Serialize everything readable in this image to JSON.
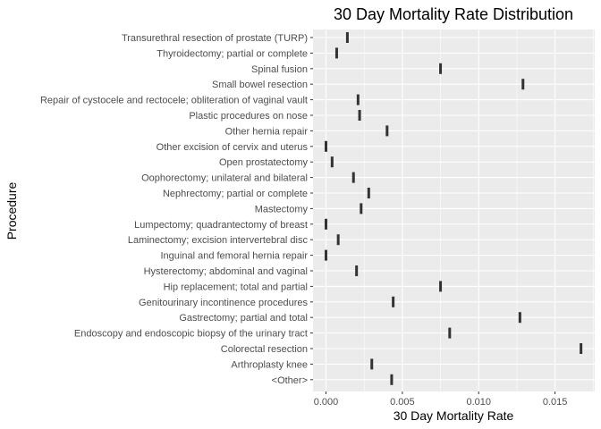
{
  "chart_data": {
    "type": "scatter",
    "title": "30 Day Mortality Rate Distribution",
    "xlabel": "30 Day Mortality Rate",
    "ylabel": "Procedure",
    "xlim": [
      -0.00085,
      0.0176
    ],
    "x_ticks": [
      0.0,
      0.005,
      0.01,
      0.015
    ],
    "x_tick_labels": [
      "0.000",
      "0.005",
      "0.010",
      "0.015"
    ],
    "grid": true,
    "marker": "vertical-dash",
    "colors": {
      "panel": "#ebebeb",
      "grid": "#ffffff",
      "marker": "#333333"
    },
    "categories": [
      "Transurethral resection of prostate (TURP)",
      "Thyroidectomy; partial or complete",
      "Spinal fusion",
      "Small bowel resection",
      "Repair of cystocele and rectocele; obliteration of vaginal vault",
      "Plastic procedures on nose",
      "Other hernia repair",
      "Other excision of cervix and uterus",
      "Open prostatectomy",
      "Oophorectomy; unilateral and bilateral",
      "Nephrectomy; partial or complete",
      "Mastectomy",
      "Lumpectomy; quadrantectomy of breast",
      "Laminectomy; excision intervertebral disc",
      "Inguinal and femoral hernia repair",
      "Hysterectomy; abdominal and vaginal",
      "Hip replacement; total and partial",
      "Genitourinary incontinence procedures",
      "Gastrectomy; partial and total",
      "Endoscopy and endoscopic biopsy of the urinary tract",
      "Colorectal resection",
      "Arthroplasty knee",
      "<Other>"
    ],
    "values": [
      0.0014,
      0.0007,
      0.0075,
      0.0129,
      0.0021,
      0.0022,
      0.004,
      0.0,
      0.0004,
      0.0018,
      0.0028,
      0.0023,
      0.0,
      0.0008,
      0.0,
      0.002,
      0.0075,
      0.0044,
      0.0127,
      0.0081,
      0.0167,
      0.003,
      0.0043
    ]
  }
}
